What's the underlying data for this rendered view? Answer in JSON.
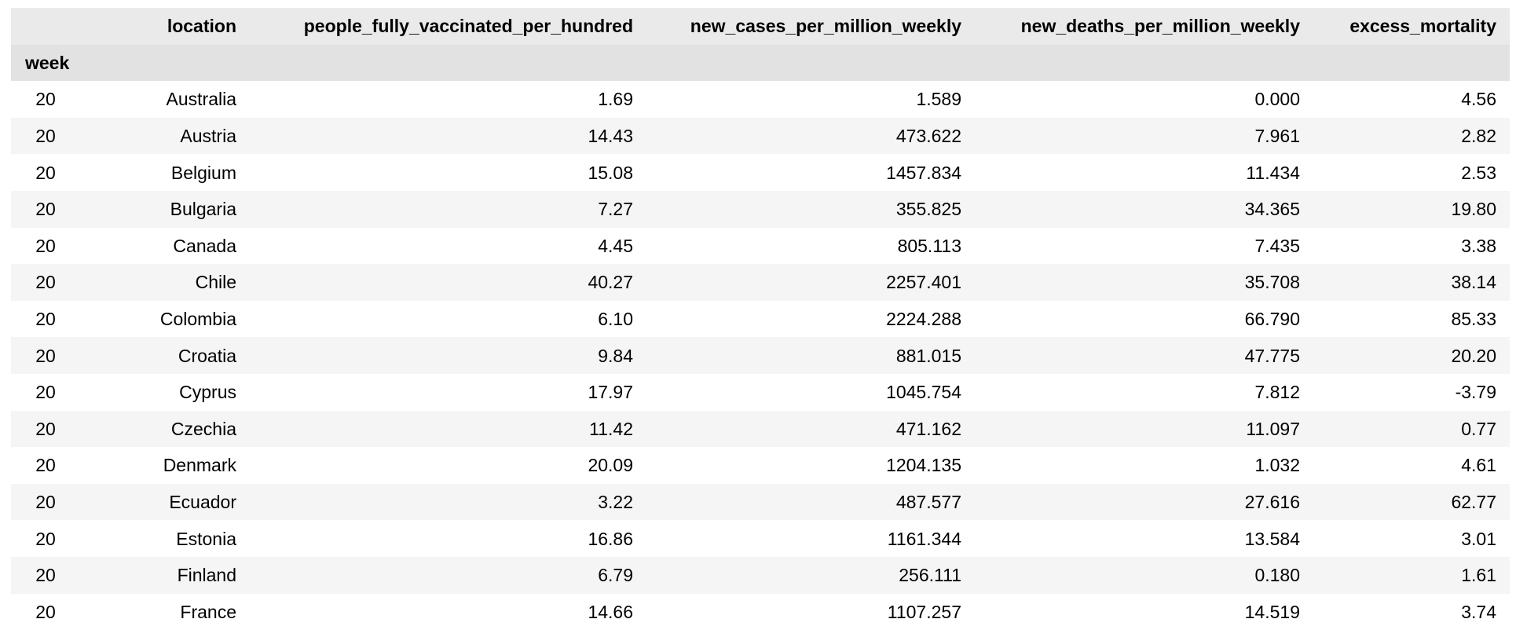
{
  "table": {
    "index_name": "week",
    "columns": [
      "location",
      "people_fully_vaccinated_per_hundred",
      "new_cases_per_million_weekly",
      "new_deaths_per_million_weekly",
      "excess_mortality"
    ],
    "rows": [
      {
        "week": "20",
        "location": "Australia",
        "vacc": "1.69",
        "cases": "1.589",
        "deaths": "0.000",
        "excess": "4.56"
      },
      {
        "week": "20",
        "location": "Austria",
        "vacc": "14.43",
        "cases": "473.622",
        "deaths": "7.961",
        "excess": "2.82"
      },
      {
        "week": "20",
        "location": "Belgium",
        "vacc": "15.08",
        "cases": "1457.834",
        "deaths": "11.434",
        "excess": "2.53"
      },
      {
        "week": "20",
        "location": "Bulgaria",
        "vacc": "7.27",
        "cases": "355.825",
        "deaths": "34.365",
        "excess": "19.80"
      },
      {
        "week": "20",
        "location": "Canada",
        "vacc": "4.45",
        "cases": "805.113",
        "deaths": "7.435",
        "excess": "3.38"
      },
      {
        "week": "20",
        "location": "Chile",
        "vacc": "40.27",
        "cases": "2257.401",
        "deaths": "35.708",
        "excess": "38.14"
      },
      {
        "week": "20",
        "location": "Colombia",
        "vacc": "6.10",
        "cases": "2224.288",
        "deaths": "66.790",
        "excess": "85.33"
      },
      {
        "week": "20",
        "location": "Croatia",
        "vacc": "9.84",
        "cases": "881.015",
        "deaths": "47.775",
        "excess": "20.20"
      },
      {
        "week": "20",
        "location": "Cyprus",
        "vacc": "17.97",
        "cases": "1045.754",
        "deaths": "7.812",
        "excess": "-3.79"
      },
      {
        "week": "20",
        "location": "Czechia",
        "vacc": "11.42",
        "cases": "471.162",
        "deaths": "11.097",
        "excess": "0.77"
      },
      {
        "week": "20",
        "location": "Denmark",
        "vacc": "20.09",
        "cases": "1204.135",
        "deaths": "1.032",
        "excess": "4.61"
      },
      {
        "week": "20",
        "location": "Ecuador",
        "vacc": "3.22",
        "cases": "487.577",
        "deaths": "27.616",
        "excess": "62.77"
      },
      {
        "week": "20",
        "location": "Estonia",
        "vacc": "16.86",
        "cases": "1161.344",
        "deaths": "13.584",
        "excess": "3.01"
      },
      {
        "week": "20",
        "location": "Finland",
        "vacc": "6.79",
        "cases": "256.111",
        "deaths": "0.180",
        "excess": "1.61"
      },
      {
        "week": "20",
        "location": "France",
        "vacc": "14.66",
        "cases": "1107.257",
        "deaths": "14.519",
        "excess": "3.74"
      }
    ]
  }
}
